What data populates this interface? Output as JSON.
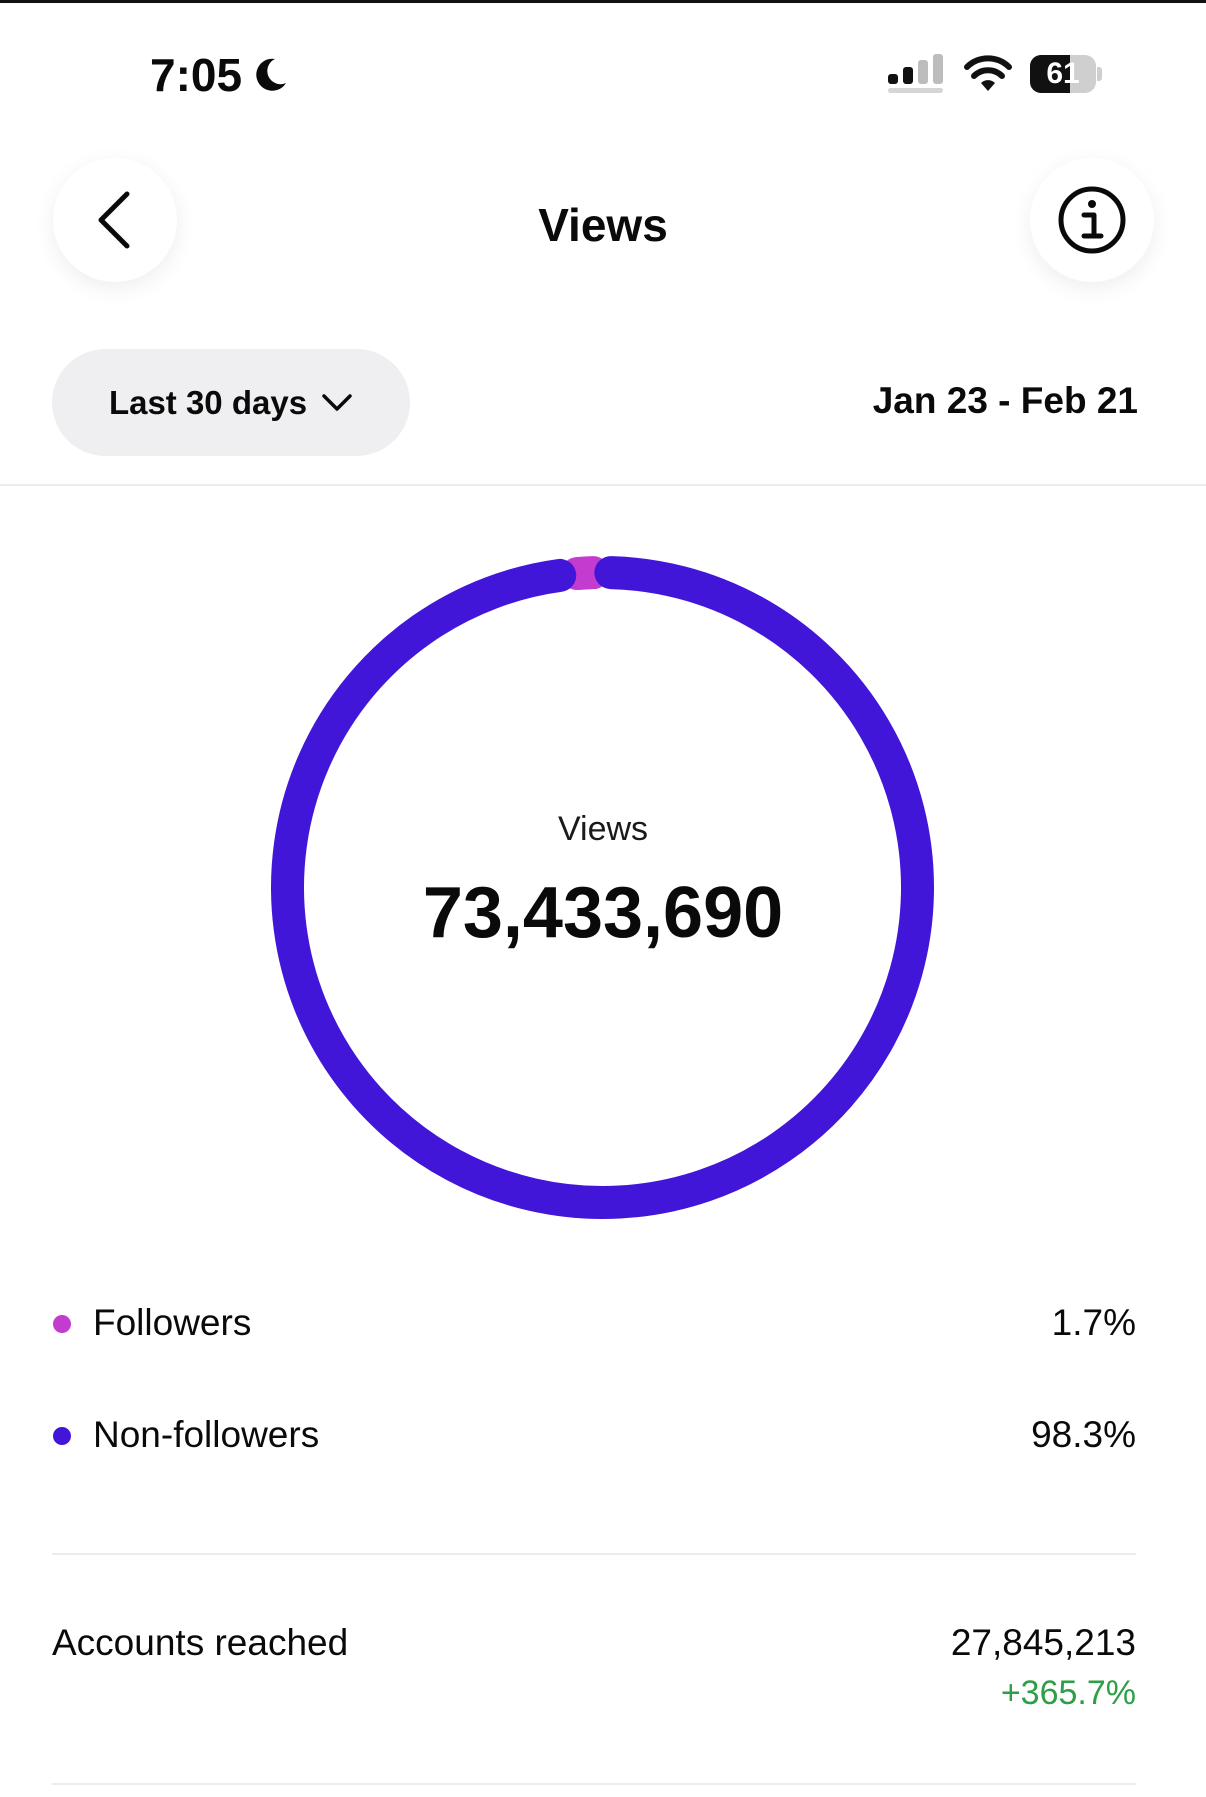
{
  "status_bar": {
    "time": "7:05",
    "battery_level": "61",
    "battery_fraction": 0.61,
    "icons": [
      "moon-icon",
      "cellular-signal-icon",
      "wifi-icon",
      "battery-icon"
    ]
  },
  "header": {
    "title": "Views",
    "back_icon": "chevron-left-icon",
    "info_icon": "info-icon"
  },
  "filters": {
    "range_label": "Last 30 days",
    "dates": "Jan 23 - Feb 21"
  },
  "chart_data": {
    "type": "pie",
    "center_label": "Views",
    "total": "73,433,690",
    "slices": [
      {
        "name": "Followers",
        "percent": 1.7,
        "label": "1.7%",
        "color": "#c43ccf"
      },
      {
        "name": "Non-followers",
        "percent": 98.3,
        "label": "98.3%",
        "color": "#4216d9"
      }
    ]
  },
  "metrics": [
    {
      "label": "Accounts reached",
      "value": "27,845,213",
      "change": "+365.7%",
      "change_color": "#2e9e48"
    }
  ]
}
